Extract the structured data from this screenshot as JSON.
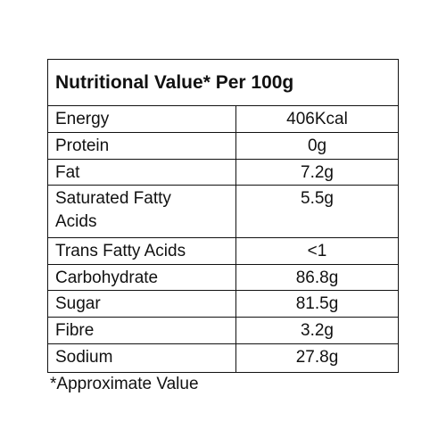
{
  "table": {
    "title": "Nutritional Value* Per 100g",
    "rows": [
      [
        "Energy",
        "406Kcal"
      ],
      [
        "Protein",
        "0g"
      ],
      [
        "Fat",
        "7.2g"
      ],
      [
        "Saturated Fatty Acids",
        "5.5g"
      ],
      [
        "Trans Fatty Acids",
        "<1"
      ],
      [
        "Carbohydrate",
        "86.8g"
      ],
      [
        "Sugar",
        "81.5g"
      ],
      [
        "Fibre",
        "3.2g"
      ],
      [
        "Sodium",
        "27.8g"
      ]
    ]
  },
  "footnote": "*Approximate Value"
}
